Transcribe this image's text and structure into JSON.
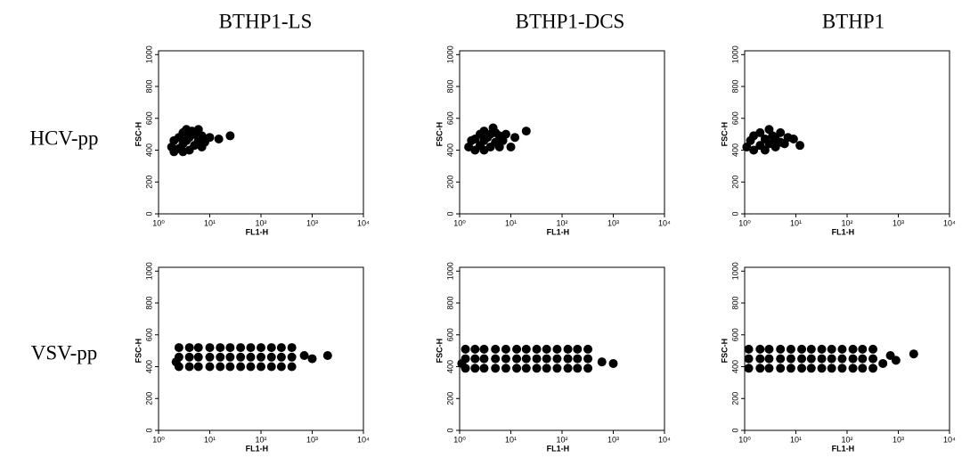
{
  "column_titles": [
    "BTHP1-LS",
    "BTHP1-DCS",
    "BTHP1"
  ],
  "row_labels": [
    "HCV-pp",
    "VSV-pp"
  ],
  "chart_data": [
    {
      "type": "scatter",
      "xlabel": "FL1-H",
      "ylabel": "FSC-H",
      "log_x": true,
      "color": "#000000",
      "xlim": [
        1,
        10000
      ],
      "ylim": [
        0,
        1024
      ],
      "xticks": [
        {
          "value": 1,
          "label": "10⁰"
        },
        {
          "value": 10,
          "label": "10¹"
        },
        {
          "value": 100,
          "label": "10²"
        },
        {
          "value": 1000,
          "label": "10³"
        },
        {
          "value": 10000,
          "label": "10⁴"
        }
      ],
      "yticks": [
        0,
        200,
        400,
        600,
        800,
        1000
      ],
      "x": [
        1.8,
        2,
        2,
        2.5,
        2.5,
        3,
        3,
        3,
        3.5,
        3.5,
        4,
        4,
        4.5,
        5,
        5,
        6,
        6,
        7,
        7,
        8,
        10,
        15,
        25
      ],
      "y": [
        420,
        390,
        460,
        410,
        480,
        390,
        440,
        510,
        460,
        530,
        400,
        480,
        520,
        430,
        500,
        460,
        530,
        420,
        490,
        450,
        480,
        470,
        490
      ]
    },
    {
      "type": "scatter",
      "xlabel": "FL1-H",
      "ylabel": "FSC-H",
      "log_x": true,
      "color": "#000000",
      "xlim": [
        1,
        10000
      ],
      "ylim": [
        0,
        1024
      ],
      "xticks": [
        {
          "value": 1,
          "label": "10⁰"
        },
        {
          "value": 10,
          "label": "10¹"
        },
        {
          "value": 100,
          "label": "10²"
        },
        {
          "value": 1000,
          "label": "10³"
        },
        {
          "value": 10000,
          "label": "10⁴"
        }
      ],
      "yticks": [
        0,
        200,
        400,
        600,
        800,
        1000
      ],
      "x": [
        1.5,
        1.7,
        2,
        2,
        2.5,
        2.5,
        3,
        3,
        3,
        3.5,
        4,
        4,
        4.5,
        5,
        5,
        6,
        6,
        7,
        8,
        12,
        20,
        10
      ],
      "y": [
        420,
        460,
        400,
        470,
        430,
        500,
        400,
        460,
        520,
        480,
        420,
        500,
        540,
        450,
        510,
        420,
        490,
        460,
        500,
        480,
        520,
        420
      ]
    },
    {
      "type": "scatter",
      "xlabel": "FL1-H",
      "ylabel": "FSC-H",
      "log_x": true,
      "color": "#000000",
      "xlim": [
        1,
        10000
      ],
      "ylim": [
        0,
        1024
      ],
      "xticks": [
        {
          "value": 1,
          "label": "10⁰"
        },
        {
          "value": 10,
          "label": "10¹"
        },
        {
          "value": 100,
          "label": "10²"
        },
        {
          "value": 1000,
          "label": "10³"
        },
        {
          "value": 10000,
          "label": "10⁴"
        }
      ],
      "yticks": [
        0,
        200,
        400,
        600,
        800,
        1000
      ],
      "x": [
        1.1,
        1.3,
        1.5,
        1.5,
        2,
        2,
        2.5,
        2.5,
        3,
        3,
        3.5,
        4,
        4,
        5,
        5,
        6,
        7,
        9,
        12
      ],
      "y": [
        420,
        460,
        400,
        490,
        430,
        510,
        400,
        470,
        440,
        530,
        490,
        420,
        470,
        450,
        510,
        440,
        480,
        470,
        430
      ]
    },
    {
      "type": "scatter",
      "xlabel": "FL1-H",
      "ylabel": "FSC-H",
      "log_x": true,
      "color": "#000000",
      "xlim": [
        1,
        10000
      ],
      "ylim": [
        0,
        1024
      ],
      "xticks": [
        {
          "value": 1,
          "label": "10⁰"
        },
        {
          "value": 10,
          "label": "10¹"
        },
        {
          "value": 100,
          "label": "10²"
        },
        {
          "value": 1000,
          "label": "10³"
        },
        {
          "value": 10000,
          "label": "10⁴"
        }
      ],
      "yticks": [
        0,
        200,
        400,
        600,
        800,
        1000
      ],
      "x": [
        2.5,
        2.5,
        2.5,
        4,
        4,
        4,
        6,
        6,
        6,
        10,
        10,
        10,
        16,
        16,
        16,
        25,
        25,
        25,
        40,
        40,
        40,
        63,
        63,
        63,
        100,
        100,
        100,
        160,
        160,
        160,
        250,
        250,
        250,
        400,
        400,
        400,
        700,
        1000,
        2000,
        2.2
      ],
      "y": [
        400,
        460,
        520,
        400,
        460,
        520,
        400,
        460,
        520,
        400,
        460,
        520,
        400,
        460,
        520,
        400,
        460,
        520,
        400,
        460,
        520,
        400,
        460,
        520,
        400,
        460,
        520,
        400,
        460,
        520,
        400,
        460,
        520,
        400,
        460,
        520,
        470,
        450,
        470,
        430
      ]
    },
    {
      "type": "scatter",
      "xlabel": "FL1-H",
      "ylabel": "FSC-H",
      "log_x": true,
      "color": "#000000",
      "xlim": [
        1,
        10000
      ],
      "ylim": [
        0,
        1024
      ],
      "xticks": [
        {
          "value": 1,
          "label": "10⁰"
        },
        {
          "value": 10,
          "label": "10¹"
        },
        {
          "value": 100,
          "label": "10²"
        },
        {
          "value": 1000,
          "label": "10³"
        },
        {
          "value": 10000,
          "label": "10⁴"
        }
      ],
      "yticks": [
        0,
        200,
        400,
        600,
        800,
        1000
      ],
      "x": [
        1.3,
        1.3,
        1.3,
        2,
        2,
        2,
        3,
        3,
        3,
        5,
        5,
        5,
        8,
        8,
        8,
        13,
        13,
        13,
        20,
        20,
        20,
        32,
        32,
        32,
        50,
        50,
        50,
        80,
        80,
        80,
        130,
        130,
        130,
        200,
        200,
        200,
        320,
        320,
        320,
        600,
        1000,
        1.1
      ],
      "y": [
        390,
        450,
        510,
        390,
        450,
        510,
        390,
        450,
        510,
        390,
        450,
        510,
        390,
        450,
        510,
        390,
        450,
        510,
        390,
        450,
        510,
        390,
        450,
        510,
        390,
        450,
        510,
        390,
        450,
        510,
        390,
        450,
        510,
        390,
        450,
        510,
        390,
        450,
        510,
        430,
        420,
        420
      ]
    },
    {
      "type": "scatter",
      "xlabel": "FL1-H",
      "ylabel": "FSC-H",
      "log_x": true,
      "color": "#000000",
      "xlim": [
        1,
        10000
      ],
      "ylim": [
        0,
        1024
      ],
      "xticks": [
        {
          "value": 1,
          "label": "10⁰"
        },
        {
          "value": 10,
          "label": "10¹"
        },
        {
          "value": 100,
          "label": "10²"
        },
        {
          "value": 1000,
          "label": "10³"
        },
        {
          "value": 10000,
          "label": "10⁴"
        }
      ],
      "yticks": [
        0,
        200,
        400,
        600,
        800,
        1000
      ],
      "x": [
        1.2,
        1.2,
        1.2,
        2,
        2,
        2,
        3,
        3,
        3,
        5,
        5,
        5,
        8,
        8,
        8,
        13,
        13,
        13,
        20,
        20,
        20,
        32,
        32,
        32,
        50,
        50,
        50,
        80,
        80,
        80,
        130,
        130,
        130,
        200,
        200,
        200,
        320,
        320,
        320,
        500,
        700,
        900,
        2000
      ],
      "y": [
        390,
        450,
        510,
        390,
        450,
        510,
        390,
        450,
        510,
        390,
        450,
        510,
        390,
        450,
        510,
        390,
        450,
        510,
        390,
        450,
        510,
        390,
        450,
        510,
        390,
        450,
        510,
        390,
        450,
        510,
        390,
        450,
        510,
        390,
        450,
        510,
        390,
        450,
        510,
        420,
        470,
        440,
        480
      ]
    }
  ]
}
